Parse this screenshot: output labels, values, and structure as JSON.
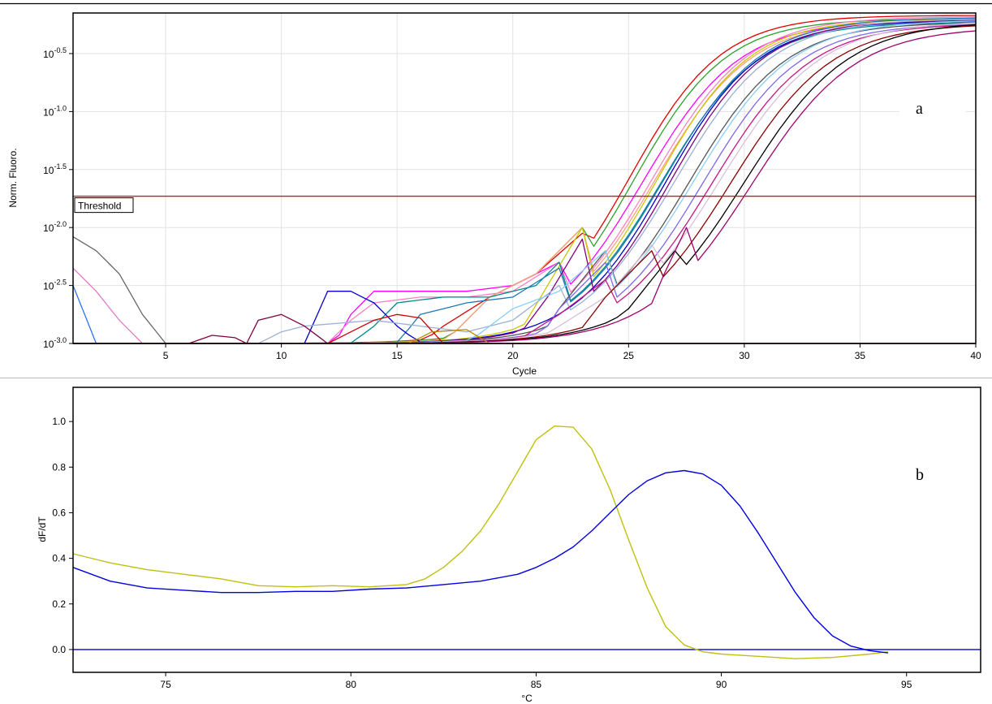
{
  "chart_data": [
    {
      "panel_label": "a",
      "type": "line",
      "xlabel": "Cycle",
      "ylabel": "Norm. Fluoro.",
      "xlim": [
        1,
        40
      ],
      "ylim_log10": [
        -3.0,
        -0.15
      ],
      "y_scale": "log10",
      "x_ticks": [
        5,
        10,
        15,
        20,
        25,
        30,
        35,
        40
      ],
      "y_ticks": [
        -3.0,
        -2.5,
        -2.0,
        -1.5,
        -1.0,
        -0.5
      ],
      "y_tick_labels": [
        "10-3.0",
        "10-2.5",
        "10-2.0",
        "10-1.5",
        "10-1.0",
        "10-0.5"
      ],
      "grid": true,
      "threshold": {
        "label": "Threshold",
        "log10_value": -1.73,
        "color": "#e00000"
      },
      "series": [
        {
          "color": "#e00000",
          "ct": 23.0,
          "plateau": -0.17,
          "k": 0.5,
          "background": [
            [
              16,
              -3.0
            ],
            [
              17,
              -2.85
            ],
            [
              19,
              -2.6
            ],
            [
              21,
              -2.4
            ],
            [
              23,
              -2.05
            ]
          ]
        },
        {
          "color": "#2ca02c",
          "ct": 23.2,
          "plateau": -0.2,
          "k": 0.5,
          "background": [
            [
              17,
              -3.0
            ],
            [
              19,
              -2.6
            ],
            [
              21,
              -2.4
            ],
            [
              23,
              -2.0
            ]
          ]
        },
        {
          "color": "#ff00ff",
          "ct": 23.6,
          "plateau": -0.22,
          "k": 0.48,
          "background": [
            [
              12.3,
              -3.0
            ],
            [
              13,
              -2.75
            ],
            [
              14,
              -2.55
            ],
            [
              16,
              -2.55
            ],
            [
              18,
              -2.55
            ],
            [
              20,
              -2.5
            ],
            [
              22,
              -2.3
            ]
          ]
        },
        {
          "color": "#ff80c0",
          "ct": 24.0,
          "plateau": -0.18,
          "k": 0.48,
          "background": [
            [
              12,
              -3.0
            ],
            [
              13,
              -2.8
            ],
            [
              14,
              -2.65
            ],
            [
              16,
              -2.6
            ],
            [
              18,
              -2.6
            ],
            [
              20,
              -2.55
            ],
            [
              22,
              -2.3
            ]
          ]
        },
        {
          "color": "#ffa07a",
          "ct": 24.1,
          "plateau": -0.21,
          "k": 0.48,
          "background": [
            [
              17,
              -3.0
            ],
            [
              19,
              -2.6
            ],
            [
              21,
              -2.4
            ],
            [
              23,
              -2.0
            ]
          ]
        },
        {
          "color": "#c8c800",
          "ct": 24.2,
          "plateau": -0.2,
          "k": 0.5,
          "background": [
            [
              20,
              -3.0
            ],
            [
              21.5,
              -2.5
            ],
            [
              23,
              -2.0
            ]
          ]
        },
        {
          "color": "#008b8b",
          "ct": 24.4,
          "plateau": -0.23,
          "k": 0.48,
          "background": [
            [
              13,
              -3.0
            ],
            [
              14,
              -2.85
            ],
            [
              15,
              -2.65
            ],
            [
              17,
              -2.6
            ],
            [
              19,
              -2.6
            ],
            [
              21,
              -2.5
            ],
            [
              22,
              -2.3
            ]
          ]
        },
        {
          "color": "#1f77b4",
          "ct": 24.5,
          "plateau": -0.19,
          "k": 0.48,
          "background": [
            [
              15,
              -3.0
            ],
            [
              16,
              -2.75
            ],
            [
              18,
              -2.65
            ],
            [
              20,
              -2.6
            ],
            [
              22,
              -2.35
            ]
          ]
        },
        {
          "color": "#0000cd",
          "ct": 24.6,
          "plateau": -0.22,
          "k": 0.5,
          "background": [
            [
              11,
              -3.0
            ],
            [
              12,
              -2.55
            ],
            [
              13,
              -2.55
            ],
            [
              14,
              -2.65
            ],
            [
              15,
              -2.85
            ],
            [
              16,
              -3.0
            ]
          ]
        },
        {
          "color": "#800080",
          "ct": 24.8,
          "plateau": -0.21,
          "k": 0.5,
          "background": [
            [
              20,
              -3.0
            ],
            [
              21.5,
              -2.6
            ],
            [
              23,
              -2.1
            ]
          ]
        },
        {
          "color": "#9ab0d8",
          "ct": 25.0,
          "plateau": -0.2,
          "k": 0.48,
          "background": [
            [
              9,
              -3.0
            ],
            [
              10,
              -2.9
            ],
            [
              11,
              -2.85
            ],
            [
              14,
              -2.8
            ],
            [
              16,
              -2.85
            ],
            [
              18,
              -2.9
            ],
            [
              20,
              -2.8
            ],
            [
              22,
              -2.5
            ]
          ]
        },
        {
          "color": "#555555",
          "ct": 25.6,
          "plateau": -0.23,
          "k": 0.48,
          "background": [
            [
              21,
              -3.0
            ],
            [
              22,
              -2.7
            ],
            [
              24,
              -2.2
            ]
          ]
        },
        {
          "color": "#87cefa",
          "ct": 25.8,
          "plateau": -0.21,
          "k": 0.47,
          "background": [
            [
              18,
              -3.0
            ],
            [
              20,
              -2.7
            ],
            [
              22,
              -2.55
            ],
            [
              24,
              -2.2
            ]
          ]
        },
        {
          "color": "#7b68ee",
          "ct": 26.2,
          "plateau": -0.24,
          "k": 0.48,
          "background": [
            [
              21,
              -3.0
            ],
            [
              22,
              -2.7
            ],
            [
              24,
              -2.3
            ]
          ]
        },
        {
          "color": "#c71585",
          "ct": 26.6,
          "plateau": -0.24,
          "k": 0.47,
          "background": [
            [
              20,
              -3.0
            ],
            [
              22,
              -2.75
            ],
            [
              24,
              -2.45
            ]
          ]
        },
        {
          "color": "#d8bfd8",
          "ct": 26.9,
          "plateau": -0.22,
          "k": 0.46,
          "background": [
            [
              21,
              -3.0
            ],
            [
              22,
              -2.85
            ],
            [
              24,
              -2.6
            ],
            [
              26,
              -2.15
            ]
          ]
        },
        {
          "color": "#8b0000",
          "ct": 27.4,
          "plateau": -0.24,
          "k": 0.46,
          "background": [
            [
              22.5,
              -3.0
            ],
            [
              24,
              -2.6
            ],
            [
              26,
              -2.2
            ]
          ]
        },
        {
          "color": "#000000",
          "ct": 28.0,
          "plateau": -0.22,
          "k": 0.45,
          "background": [
            [
              23,
              -3.0
            ],
            [
              25,
              -2.7
            ],
            [
              27,
              -2.2
            ]
          ]
        },
        {
          "color": "#a0006e",
          "ct": 28.3,
          "plateau": -0.27,
          "k": 0.45,
          "background": [
            [
              25.7,
              -3.0
            ],
            [
              26.3,
              -2.5
            ],
            [
              27.5,
              -2.0
            ]
          ]
        },
        {
          "color": "#666666",
          "ct": 99,
          "plateau": -3.0,
          "k": 0.5,
          "background": [
            [
              1,
              -2.08
            ],
            [
              2,
              -2.2
            ],
            [
              3,
              -2.4
            ],
            [
              4,
              -2.75
            ],
            [
              5,
              -3.0
            ]
          ]
        },
        {
          "color": "#e37cc4",
          "ct": 99,
          "plateau": -3.0,
          "k": 0.5,
          "background": [
            [
              1,
              -2.35
            ],
            [
              2,
              -2.55
            ],
            [
              3,
              -2.8
            ],
            [
              4,
              -3.0
            ]
          ]
        },
        {
          "color": "#3070ff",
          "ct": 99,
          "plateau": -3.0,
          "k": 0.5,
          "background": [
            [
              1,
              -2.5
            ],
            [
              1.6,
              -2.8
            ],
            [
              2,
              -3.0
            ]
          ]
        },
        {
          "color": "#800040",
          "ct": 99,
          "plateau": -3.0,
          "k": 0.5,
          "background": [
            [
              6,
              -3.0
            ],
            [
              7,
              -2.93
            ],
            [
              8,
              -2.95
            ],
            [
              8.5,
              -3.0
            ],
            [
              9,
              -2.8
            ],
            [
              10,
              -2.75
            ],
            [
              11,
              -2.85
            ],
            [
              12,
              -3.0
            ]
          ]
        },
        {
          "color": "#cc0000",
          "ct": 99,
          "plateau": -3.0,
          "k": 0.5,
          "background": [
            [
              12,
              -3.0
            ],
            [
              13,
              -2.9
            ],
            [
              14,
              -2.8
            ],
            [
              15,
              -2.75
            ],
            [
              16,
              -2.78
            ],
            [
              17,
              -3.0
            ]
          ]
        },
        {
          "color": "#b8860b",
          "ct": 99,
          "plateau": -3.0,
          "k": 0.5,
          "background": [
            [
              15.5,
              -3.0
            ],
            [
              16.5,
              -2.9
            ],
            [
              18,
              -2.88
            ],
            [
              19,
              -3.0
            ]
          ]
        }
      ]
    },
    {
      "panel_label": "b",
      "type": "line",
      "xlabel": "°C",
      "ylabel": "dF/dT",
      "xlim": [
        72.5,
        97
      ],
      "ylim": [
        -0.1,
        1.15
      ],
      "x_ticks": [
        75,
        80,
        85,
        90,
        95
      ],
      "y_ticks": [
        0.0,
        0.2,
        0.4,
        0.6,
        0.8,
        1.0
      ],
      "y_tick_labels": [
        "0.0",
        "0.2",
        "0.4",
        "0.6",
        "0.8",
        "1.0"
      ],
      "grid": false,
      "baseline": {
        "value": 0.0,
        "color": "#0000e0"
      },
      "series": [
        {
          "color": "#c0c010",
          "x": [
            72.5,
            73.5,
            74.5,
            75.5,
            76.5,
            77.5,
            78.5,
            79.5,
            80.5,
            81.5,
            82.0,
            82.5,
            83.0,
            83.5,
            84.0,
            84.5,
            85.0,
            85.5,
            86.0,
            86.5,
            87.0,
            87.5,
            88.0,
            88.5,
            89.0,
            89.5,
            90.0,
            91.0,
            92.0,
            93.0,
            94.0,
            94.5
          ],
          "y": [
            0.42,
            0.38,
            0.35,
            0.33,
            0.31,
            0.28,
            0.275,
            0.28,
            0.275,
            0.285,
            0.31,
            0.36,
            0.43,
            0.52,
            0.64,
            0.78,
            0.92,
            0.98,
            0.975,
            0.88,
            0.7,
            0.48,
            0.27,
            0.1,
            0.02,
            -0.01,
            -0.02,
            -0.03,
            -0.04,
            -0.035,
            -0.02,
            -0.01
          ]
        },
        {
          "color": "#0000e0",
          "x": [
            72.5,
            73.5,
            74.5,
            75.5,
            76.5,
            77.5,
            78.5,
            79.5,
            80.5,
            81.5,
            82.5,
            83.5,
            84.5,
            85.0,
            85.5,
            86.0,
            86.5,
            87.0,
            87.5,
            88.0,
            88.5,
            89.0,
            89.5,
            90.0,
            90.5,
            91.0,
            91.5,
            92.0,
            92.5,
            93.0,
            93.5,
            94.0,
            94.5
          ],
          "y": [
            0.36,
            0.3,
            0.27,
            0.26,
            0.25,
            0.25,
            0.255,
            0.255,
            0.265,
            0.27,
            0.285,
            0.3,
            0.33,
            0.36,
            0.4,
            0.45,
            0.52,
            0.6,
            0.68,
            0.74,
            0.775,
            0.785,
            0.77,
            0.72,
            0.63,
            0.51,
            0.38,
            0.25,
            0.14,
            0.06,
            0.015,
            -0.005,
            -0.015
          ]
        }
      ]
    }
  ]
}
